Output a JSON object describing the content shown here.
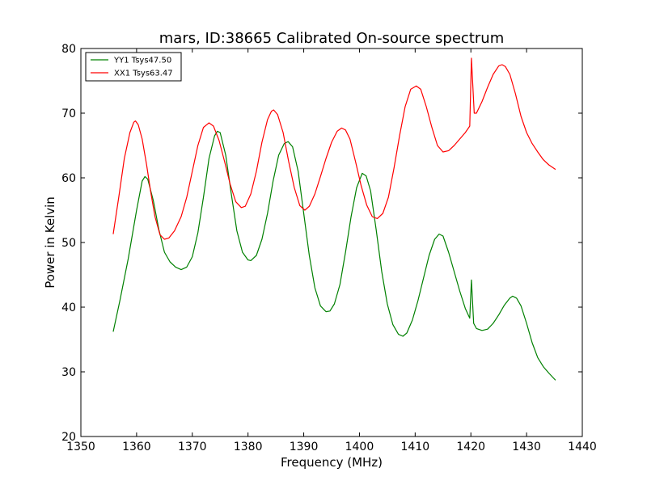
{
  "chart_data": {
    "type": "line",
    "title": "mars, ID:38665 Calibrated On-source spectrum",
    "xlabel": "Frequency (MHz)",
    "ylabel": "Power in Kelvin",
    "xlim": [
      1350,
      1440
    ],
    "ylim": [
      20,
      80
    ],
    "xticks": [
      1350,
      1360,
      1370,
      1380,
      1390,
      1400,
      1410,
      1420,
      1430,
      1440
    ],
    "yticks": [
      20,
      30,
      40,
      50,
      60,
      70,
      80
    ],
    "grid": false,
    "legend_position": "top-left",
    "series": [
      {
        "name": "YY1 Tsys47.50",
        "color": "#008000",
        "points": [
          [
            1355.8,
            36.2
          ],
          [
            1357.0,
            41.0
          ],
          [
            1358.5,
            47.5
          ],
          [
            1360.0,
            55.0
          ],
          [
            1361.0,
            59.5
          ],
          [
            1361.5,
            60.2
          ],
          [
            1362.0,
            59.8
          ],
          [
            1363.0,
            56.5
          ],
          [
            1364.0,
            52.0
          ],
          [
            1365.0,
            48.5
          ],
          [
            1366.0,
            47.0
          ],
          [
            1367.0,
            46.2
          ],
          [
            1368.0,
            45.8
          ],
          [
            1369.0,
            46.2
          ],
          [
            1370.0,
            47.8
          ],
          [
            1371.0,
            51.5
          ],
          [
            1372.0,
            57.0
          ],
          [
            1373.0,
            63.0
          ],
          [
            1374.0,
            66.5
          ],
          [
            1374.5,
            67.2
          ],
          [
            1375.0,
            67.0
          ],
          [
            1376.0,
            63.5
          ],
          [
            1377.0,
            57.5
          ],
          [
            1378.0,
            51.8
          ],
          [
            1379.0,
            48.5
          ],
          [
            1380.0,
            47.3
          ],
          [
            1380.5,
            47.2
          ],
          [
            1381.5,
            48.0
          ],
          [
            1382.5,
            50.5
          ],
          [
            1383.5,
            54.5
          ],
          [
            1384.5,
            59.5
          ],
          [
            1385.5,
            63.5
          ],
          [
            1386.5,
            65.3
          ],
          [
            1387.2,
            65.6
          ],
          [
            1388.0,
            64.8
          ],
          [
            1389.0,
            61.0
          ],
          [
            1390.0,
            54.5
          ],
          [
            1391.0,
            48.0
          ],
          [
            1392.0,
            43.0
          ],
          [
            1393.0,
            40.2
          ],
          [
            1394.0,
            39.3
          ],
          [
            1394.7,
            39.4
          ],
          [
            1395.5,
            40.5
          ],
          [
            1396.5,
            43.5
          ],
          [
            1397.5,
            48.5
          ],
          [
            1398.5,
            54.0
          ],
          [
            1399.5,
            58.5
          ],
          [
            1400.5,
            60.7
          ],
          [
            1401.2,
            60.3
          ],
          [
            1402.0,
            58.0
          ],
          [
            1403.0,
            52.0
          ],
          [
            1404.0,
            45.5
          ],
          [
            1405.0,
            40.5
          ],
          [
            1406.0,
            37.3
          ],
          [
            1407.0,
            35.8
          ],
          [
            1407.8,
            35.5
          ],
          [
            1408.5,
            36.0
          ],
          [
            1409.5,
            38.0
          ],
          [
            1410.5,
            41.0
          ],
          [
            1411.5,
            44.5
          ],
          [
            1412.5,
            48.0
          ],
          [
            1413.5,
            50.5
          ],
          [
            1414.3,
            51.3
          ],
          [
            1415.0,
            51.0
          ],
          [
            1416.0,
            48.5
          ],
          [
            1417.0,
            45.5
          ],
          [
            1418.0,
            42.5
          ],
          [
            1419.0,
            39.8
          ],
          [
            1419.8,
            38.3
          ],
          [
            1420.1,
            44.2
          ],
          [
            1420.5,
            37.5
          ],
          [
            1421.0,
            36.7
          ],
          [
            1422.0,
            36.4
          ],
          [
            1423.0,
            36.6
          ],
          [
            1424.0,
            37.5
          ],
          [
            1425.0,
            38.8
          ],
          [
            1426.0,
            40.3
          ],
          [
            1427.0,
            41.4
          ],
          [
            1427.5,
            41.7
          ],
          [
            1428.2,
            41.4
          ],
          [
            1429.0,
            40.2
          ],
          [
            1430.0,
            37.5
          ],
          [
            1431.0,
            34.5
          ],
          [
            1432.0,
            32.2
          ],
          [
            1433.0,
            30.8
          ],
          [
            1434.0,
            29.8
          ],
          [
            1435.2,
            28.7
          ]
        ]
      },
      {
        "name": "XX1 Tsys63.47",
        "color": "#ff0000",
        "points": [
          [
            1355.8,
            51.3
          ],
          [
            1356.8,
            57.0
          ],
          [
            1357.8,
            63.0
          ],
          [
            1358.8,
            67.0
          ],
          [
            1359.5,
            68.6
          ],
          [
            1359.8,
            68.8
          ],
          [
            1360.3,
            68.2
          ],
          [
            1361.0,
            66.0
          ],
          [
            1361.8,
            62.0
          ],
          [
            1362.5,
            58.0
          ],
          [
            1363.3,
            54.0
          ],
          [
            1364.2,
            51.2
          ],
          [
            1365.0,
            50.5
          ],
          [
            1365.8,
            50.7
          ],
          [
            1366.8,
            51.8
          ],
          [
            1368.0,
            54.0
          ],
          [
            1369.0,
            57.0
          ],
          [
            1370.0,
            61.0
          ],
          [
            1371.0,
            65.0
          ],
          [
            1372.0,
            67.8
          ],
          [
            1373.0,
            68.5
          ],
          [
            1373.8,
            68.0
          ],
          [
            1374.8,
            65.8
          ],
          [
            1375.8,
            62.5
          ],
          [
            1376.8,
            59.0
          ],
          [
            1377.8,
            56.3
          ],
          [
            1378.8,
            55.4
          ],
          [
            1379.5,
            55.6
          ],
          [
            1380.5,
            57.5
          ],
          [
            1381.5,
            61.0
          ],
          [
            1382.5,
            65.5
          ],
          [
            1383.5,
            69.0
          ],
          [
            1384.2,
            70.3
          ],
          [
            1384.6,
            70.5
          ],
          [
            1385.3,
            69.8
          ],
          [
            1386.3,
            67.0
          ],
          [
            1387.3,
            62.5
          ],
          [
            1388.3,
            58.5
          ],
          [
            1389.3,
            55.7
          ],
          [
            1390.2,
            55.0
          ],
          [
            1391.0,
            55.6
          ],
          [
            1392.0,
            57.5
          ],
          [
            1393.0,
            60.2
          ],
          [
            1394.0,
            63.0
          ],
          [
            1395.0,
            65.5
          ],
          [
            1396.0,
            67.2
          ],
          [
            1396.8,
            67.7
          ],
          [
            1397.5,
            67.4
          ],
          [
            1398.3,
            66.0
          ],
          [
            1399.3,
            62.5
          ],
          [
            1400.3,
            58.8
          ],
          [
            1401.3,
            55.8
          ],
          [
            1402.3,
            54.0
          ],
          [
            1403.2,
            53.7
          ],
          [
            1404.2,
            54.5
          ],
          [
            1405.2,
            57.0
          ],
          [
            1406.2,
            61.5
          ],
          [
            1407.2,
            66.5
          ],
          [
            1408.2,
            71.0
          ],
          [
            1409.2,
            73.7
          ],
          [
            1410.2,
            74.2
          ],
          [
            1411.0,
            73.7
          ],
          [
            1412.0,
            71.0
          ],
          [
            1413.0,
            67.8
          ],
          [
            1414.0,
            65.0
          ],
          [
            1415.0,
            64.0
          ],
          [
            1416.0,
            64.2
          ],
          [
            1417.0,
            65.0
          ],
          [
            1418.0,
            66.0
          ],
          [
            1419.0,
            67.0
          ],
          [
            1419.8,
            68.0
          ],
          [
            1420.1,
            78.5
          ],
          [
            1420.6,
            70.0
          ],
          [
            1421.0,
            70.0
          ],
          [
            1422.0,
            71.8
          ],
          [
            1423.0,
            74.0
          ],
          [
            1424.0,
            76.0
          ],
          [
            1425.0,
            77.3
          ],
          [
            1425.6,
            77.5
          ],
          [
            1426.2,
            77.2
          ],
          [
            1427.0,
            76.0
          ],
          [
            1428.0,
            73.0
          ],
          [
            1429.0,
            69.5
          ],
          [
            1430.0,
            67.0
          ],
          [
            1431.0,
            65.3
          ],
          [
            1432.0,
            64.0
          ],
          [
            1433.0,
            62.8
          ],
          [
            1434.0,
            62.0
          ],
          [
            1435.2,
            61.3
          ]
        ]
      }
    ]
  }
}
